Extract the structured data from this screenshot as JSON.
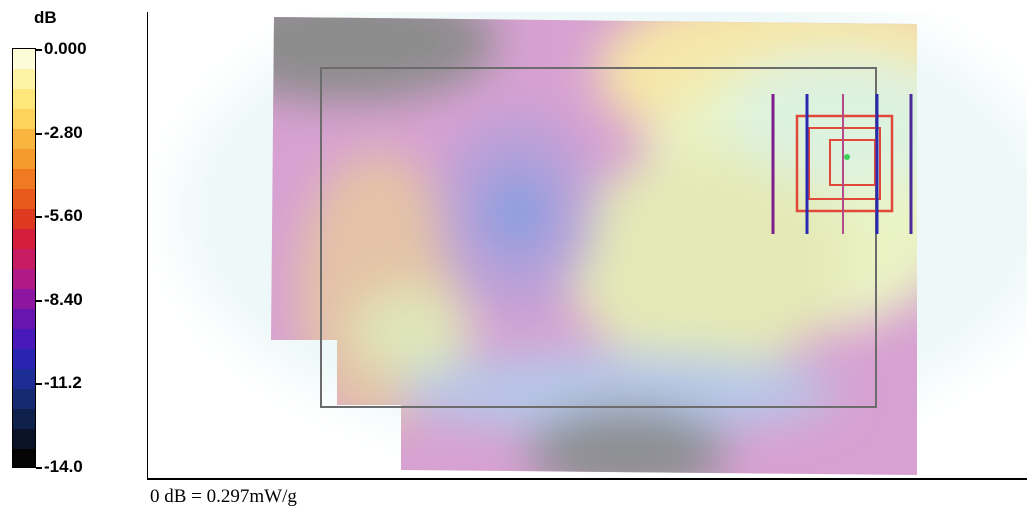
{
  "chart_data": {
    "type": "heatmap",
    "title": "",
    "xlabel": "",
    "ylabel": "",
    "colorbar": {
      "unit": "dB",
      "range": [
        -14.0,
        0.0
      ],
      "tick_labels": [
        "0.000",
        "-2.80",
        "-5.60",
        "-8.40",
        "-11.2",
        "-14.0"
      ],
      "tick_values": [
        0.0,
        -2.8,
        -5.6,
        -8.4,
        -11.2,
        -14.0
      ],
      "colors_top_to_bottom": [
        "#fdfbd8",
        "#fdf3a6",
        "#fde67a",
        "#fdd35c",
        "#f9b53e",
        "#f59a2c",
        "#ef7a22",
        "#e85a1c",
        "#de3a22",
        "#d41e3c",
        "#c81c62",
        "#b01a86",
        "#8c16a0",
        "#6a14b0",
        "#4818b8",
        "#2a22b0",
        "#1c2e96",
        "#162a72",
        "#10204c",
        "#0a1228",
        "#050505"
      ]
    },
    "reference": "0 dB = 0.297mW/g",
    "grid": false
  }
}
